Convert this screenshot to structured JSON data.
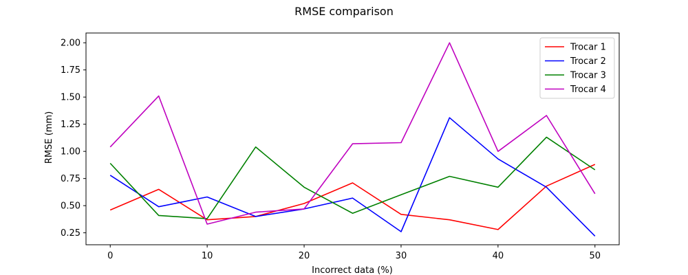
{
  "chart_data": {
    "type": "line",
    "title": "RMSE comparison",
    "xlabel": "Incorrect data (%)",
    "ylabel": "RMSE (mm)",
    "x": [
      0,
      5,
      10,
      15,
      20,
      25,
      30,
      35,
      40,
      45,
      50
    ],
    "xlim": [
      -2.5,
      52.5
    ],
    "ylim": [
      0.14,
      2.09
    ],
    "xticks": [
      0,
      10,
      20,
      30,
      40,
      50
    ],
    "yticks": [
      0.25,
      0.5,
      0.75,
      1.0,
      1.25,
      1.5,
      1.75,
      2.0
    ],
    "grid": false,
    "legend": "top-right",
    "series": [
      {
        "name": "Trocar 1",
        "color": "#ff0000",
        "values": [
          0.46,
          0.65,
          0.37,
          0.4,
          0.52,
          0.71,
          0.42,
          0.37,
          0.28,
          0.68,
          0.88
        ]
      },
      {
        "name": "Trocar 2",
        "color": "#0000ff",
        "values": [
          0.78,
          0.49,
          0.58,
          0.4,
          0.47,
          0.57,
          0.26,
          1.31,
          0.93,
          0.67,
          0.22
        ]
      },
      {
        "name": "Trocar 3",
        "color": "#008000",
        "values": [
          0.89,
          0.41,
          0.38,
          1.04,
          0.67,
          0.43,
          0.6,
          0.77,
          0.67,
          1.13,
          0.83
        ]
      },
      {
        "name": "Trocar 4",
        "color": "#bf00bf",
        "values": [
          1.04,
          1.51,
          0.33,
          0.44,
          0.47,
          1.07,
          1.08,
          2.0,
          1.0,
          1.33,
          0.61
        ]
      }
    ]
  }
}
